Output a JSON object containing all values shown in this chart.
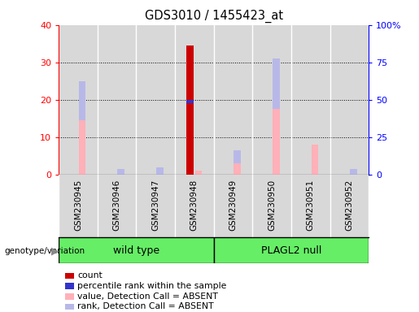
{
  "title": "GDS3010 / 1455423_at",
  "samples": [
    "GSM230945",
    "GSM230946",
    "GSM230947",
    "GSM230948",
    "GSM230949",
    "GSM230950",
    "GSM230951",
    "GSM230952"
  ],
  "count": [
    0,
    0,
    0,
    34.5,
    0,
    0,
    0,
    0
  ],
  "percentile_rank": [
    0,
    0,
    0,
    19.5,
    0,
    0,
    0,
    0
  ],
  "value_absent": [
    14.5,
    0,
    0,
    1.0,
    3.0,
    17.5,
    8.0,
    0
  ],
  "rank_absent": [
    10.5,
    1.5,
    2.0,
    0,
    3.5,
    13.5,
    0,
    1.5
  ],
  "ylim": [
    0,
    40
  ],
  "yticks_left": [
    0,
    10,
    20,
    30,
    40
  ],
  "ytick_labels_left": [
    "0",
    "10",
    "20",
    "30",
    "40"
  ],
  "ytick_labels_right": [
    "0",
    "25",
    "50",
    "75",
    "100%"
  ],
  "color_count": "#cc0000",
  "color_percentile": "#3333cc",
  "color_value_absent": "#ffb0b8",
  "color_rank_absent": "#b8b8e8",
  "bg_plot": "#d8d8d8",
  "bg_group": "#66ee66",
  "legend_items": [
    {
      "label": "count",
      "color": "#cc0000"
    },
    {
      "label": "percentile rank within the sample",
      "color": "#3333cc"
    },
    {
      "label": "value, Detection Call = ABSENT",
      "color": "#ffb0b8"
    },
    {
      "label": "rank, Detection Call = ABSENT",
      "color": "#b8b8e8"
    }
  ],
  "genotype_label": "genotype/variation",
  "wt_label": "wild type",
  "null_label": "PLAGL2 null"
}
